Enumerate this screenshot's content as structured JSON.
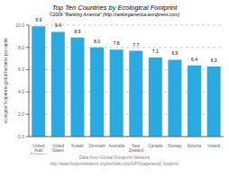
{
  "chart_data": {
    "type": "bar",
    "title": "Top Ten Countries by Ecological Footprint",
    "subtitle": "©2009 \"Ranking America\" (http://rankingamerica.wordpress.com)",
    "categories": [
      "United\nArab\nEmirates",
      "United\nStates",
      "Kuwait",
      "Denmark",
      "Australia",
      "New\nZealand",
      "Canada",
      "Norway",
      "Estonia",
      "Ireland"
    ],
    "values": [
      9.9,
      9.4,
      8.9,
      8.0,
      7.8,
      7.7,
      7.1,
      6.9,
      6.4,
      6.3
    ],
    "value_labels": [
      "9.9",
      "9.4",
      "8.9",
      "8.0",
      "7.8",
      "7.7",
      "7.1",
      "6.9",
      "6.4",
      "6.3"
    ],
    "data_labels": true,
    "color": "#29ABE2",
    "ylabel": "ecological footprint in global hectares per capita",
    "ylim": [
      0.0,
      10.0
    ],
    "yticks": [
      {
        "value": 0,
        "label": "0.0"
      },
      {
        "value": 2,
        "label": "2.0"
      },
      {
        "value": 4,
        "label": "4.0"
      },
      {
        "value": 6,
        "label": "6.0"
      },
      {
        "value": 8,
        "label": "8.0"
      },
      {
        "value": 10,
        "label": "10.0"
      }
    ],
    "grid": true,
    "annotations": [
      "Data from Global Footprint Network",
      "http://www.footprintnetwork.org/en/index.php/GFN/page/world_footprint/"
    ]
  }
}
